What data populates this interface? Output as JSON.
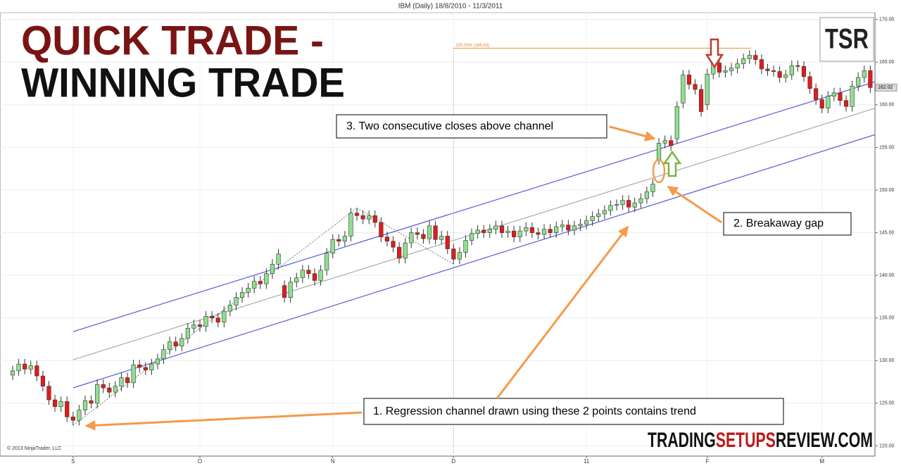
{
  "chart_data": {
    "type": "candlestick",
    "title": "IBM (Daily)  18/8/2010 - 11/3/2011",
    "categories": [
      null,
      null,
      null,
      null,
      null,
      null,
      null,
      null,
      null,
      null,
      "S",
      null,
      null,
      null,
      null,
      null,
      null,
      null,
      null,
      null,
      null,
      null,
      null,
      null,
      null,
      null,
      null,
      null,
      null,
      null,
      null,
      "O",
      null,
      null,
      null,
      null,
      null,
      null,
      null,
      null,
      null,
      null,
      null,
      null,
      null,
      null,
      null,
      null,
      null,
      null,
      null,
      null,
      null,
      "N",
      null,
      null,
      null,
      null,
      null,
      null,
      null,
      null,
      null,
      null,
      null,
      null,
      null,
      null,
      null,
      null,
      null,
      null,
      null,
      "D",
      null,
      null,
      null,
      null,
      null,
      null,
      null,
      null,
      null,
      null,
      null,
      null,
      null,
      null,
      null,
      null,
      null,
      null,
      null,
      null,
      null,
      "11",
      null,
      null,
      null,
      null,
      null,
      null,
      null,
      null,
      null,
      null,
      null,
      null,
      null,
      null,
      null,
      null,
      null,
      null,
      null,
      "F",
      null,
      null,
      null,
      null,
      null,
      null,
      null,
      null,
      null,
      null,
      null,
      null,
      null,
      null,
      null,
      null,
      null,
      null,
      "M",
      null,
      null,
      null,
      null,
      null,
      null,
      null,
      null
    ],
    "open": [
      128.3,
      128.8,
      129.6,
      129.0,
      129.4,
      128.2,
      127.0,
      125.4,
      124.6,
      125.2,
      123.4,
      123.0,
      124.2,
      125.3,
      125.0,
      127.2,
      126.8,
      126.3,
      127.0,
      128.0,
      127.4,
      129.5,
      129.2,
      128.9,
      129.6,
      130.2,
      131.3,
      132.2,
      131.7,
      132.6,
      133.8,
      134.2,
      134.0,
      135.2,
      135.0,
      134.5,
      135.8,
      136.5,
      137.4,
      138.0,
      138.5,
      139.3,
      139.0,
      140.2,
      141.3,
      138.8,
      137.4,
      139.2,
      139.7,
      140.6,
      140.2,
      139.4,
      140.6,
      142.6,
      144.2,
      144.0,
      144.6,
      147.3,
      147.0,
      146.6,
      147.0,
      146.2,
      144.5,
      144.0,
      143.3,
      142.0,
      143.8,
      145.0,
      144.8,
      144.3,
      145.8,
      144.2,
      144.6,
      143.1,
      141.9,
      142.7,
      144.1,
      144.9,
      145.3,
      145.0,
      145.4,
      145.8,
      145.0,
      145.2,
      144.5,
      145.2,
      145.6,
      145.0,
      144.8,
      145.4,
      145.0,
      145.7,
      145.9,
      145.3,
      145.8,
      146.0,
      146.4,
      146.9,
      147.2,
      147.6,
      148.2,
      148.3,
      148.8,
      148.0,
      148.5,
      149.0,
      149.8,
      153.6,
      155.5,
      155.8,
      156.0,
      160.2,
      163.5,
      162.4,
      161.8,
      160.0,
      163.6,
      164.9,
      163.8,
      164.0,
      164.3,
      164.8,
      165.4,
      165.8,
      165.3,
      164.2,
      164.0,
      163.9,
      163.2,
      163.5,
      164.6,
      164.5,
      163.3,
      161.9,
      160.6,
      159.6,
      161.0,
      161.4,
      160.5,
      159.8,
      162.2,
      163.2,
      164.0
    ],
    "high": [
      129.4,
      130.2,
      130.2,
      130.0,
      130.0,
      128.8,
      127.6,
      126.0,
      125.8,
      125.8,
      124.0,
      124.8,
      125.9,
      125.9,
      127.8,
      127.8,
      127.4,
      127.6,
      128.6,
      128.6,
      130.1,
      130.1,
      129.8,
      130.2,
      130.8,
      131.9,
      132.8,
      132.8,
      133.2,
      134.4,
      134.8,
      134.8,
      135.8,
      135.8,
      135.6,
      136.4,
      137.1,
      138.0,
      138.6,
      139.1,
      139.9,
      139.9,
      140.8,
      141.9,
      143.1,
      139.4,
      139.8,
      140.3,
      141.2,
      141.2,
      140.8,
      141.2,
      143.2,
      144.8,
      144.8,
      145.2,
      147.9,
      147.9,
      147.6,
      147.6,
      147.6,
      146.8,
      145.1,
      144.6,
      143.9,
      144.4,
      145.6,
      145.6,
      145.4,
      146.4,
      146.4,
      145.2,
      145.2,
      143.7,
      143.3,
      144.7,
      145.5,
      145.9,
      145.9,
      146.0,
      146.4,
      146.4,
      145.8,
      145.8,
      145.8,
      146.2,
      146.2,
      145.6,
      146.0,
      146.0,
      146.3,
      146.5,
      146.5,
      146.4,
      146.6,
      147.0,
      147.5,
      147.8,
      148.2,
      148.8,
      148.9,
      149.4,
      149.4,
      149.1,
      149.6,
      150.4,
      151.3,
      156.1,
      156.4,
      156.4,
      160.4,
      164.1,
      164.1,
      163.0,
      162.4,
      164.2,
      165.5,
      165.5,
      164.6,
      164.9,
      165.4,
      166.0,
      166.4,
      166.4,
      165.9,
      164.8,
      164.6,
      164.5,
      164.1,
      165.2,
      165.2,
      165.1,
      163.9,
      162.5,
      161.2,
      161.6,
      162.0,
      162.0,
      161.1,
      162.8,
      163.8,
      164.6,
      164.6
    ],
    "low": [
      127.7,
      128.2,
      128.4,
      128.4,
      127.6,
      126.4,
      124.8,
      124.0,
      124.0,
      122.8,
      122.4,
      122.4,
      123.6,
      124.4,
      124.4,
      126.2,
      125.7,
      125.7,
      126.4,
      126.8,
      126.8,
      128.6,
      128.3,
      128.3,
      129.0,
      129.6,
      130.7,
      131.1,
      131.1,
      132.0,
      133.2,
      133.4,
      133.4,
      134.4,
      133.9,
      133.9,
      135.2,
      135.9,
      136.8,
      137.4,
      137.9,
      138.4,
      138.4,
      139.6,
      140.7,
      136.8,
      136.8,
      138.6,
      139.1,
      139.6,
      138.8,
      138.8,
      140.0,
      142.0,
      143.4,
      143.4,
      144.0,
      146.4,
      146.0,
      146.0,
      145.6,
      143.9,
      143.4,
      142.7,
      141.4,
      141.4,
      143.2,
      144.2,
      143.7,
      143.7,
      143.6,
      143.6,
      142.5,
      141.3,
      141.3,
      142.1,
      143.5,
      144.3,
      144.4,
      144.4,
      144.8,
      144.4,
      144.4,
      143.9,
      143.9,
      144.6,
      144.4,
      144.2,
      144.2,
      144.4,
      144.4,
      145.1,
      144.7,
      144.7,
      145.2,
      145.4,
      145.8,
      146.3,
      146.6,
      147.0,
      147.6,
      147.7,
      147.4,
      147.4,
      147.9,
      148.4,
      149.2,
      153.0,
      154.9,
      154.6,
      155.4,
      159.6,
      161.8,
      161.2,
      158.6,
      159.4,
      163.0,
      163.2,
      163.2,
      163.4,
      163.7,
      164.2,
      164.8,
      164.7,
      163.6,
      163.4,
      163.3,
      162.6,
      162.6,
      162.9,
      163.9,
      162.7,
      161.3,
      160.0,
      159.0,
      159.0,
      160.4,
      159.9,
      159.2,
      159.2,
      161.6,
      162.6,
      161.4
    ],
    "close": [
      128.8,
      129.6,
      129.0,
      129.4,
      128.2,
      127.0,
      125.4,
      124.6,
      125.2,
      123.4,
      123.0,
      124.2,
      125.3,
      125.0,
      127.2,
      126.8,
      126.3,
      127.0,
      128.0,
      127.4,
      129.5,
      129.2,
      128.9,
      129.6,
      130.2,
      131.3,
      132.2,
      131.7,
      132.6,
      133.8,
      134.2,
      134.0,
      135.2,
      135.0,
      134.5,
      135.8,
      136.5,
      137.4,
      138.0,
      138.5,
      139.3,
      139.0,
      140.2,
      141.3,
      142.5,
      137.4,
      139.2,
      139.7,
      140.6,
      140.2,
      139.4,
      140.6,
      142.6,
      144.2,
      144.0,
      144.6,
      147.3,
      147.0,
      146.6,
      147.0,
      146.2,
      144.5,
      144.0,
      143.3,
      142.0,
      143.8,
      145.0,
      144.8,
      144.3,
      145.8,
      144.2,
      144.6,
      143.1,
      141.9,
      142.7,
      144.1,
      144.9,
      145.3,
      145.0,
      145.4,
      145.8,
      145.0,
      145.2,
      144.5,
      145.2,
      145.6,
      145.0,
      144.8,
      145.4,
      145.0,
      145.7,
      145.9,
      145.3,
      145.8,
      146.0,
      146.4,
      146.9,
      147.2,
      147.6,
      148.2,
      148.3,
      148.8,
      148.0,
      148.5,
      149.0,
      149.8,
      150.7,
      155.5,
      155.8,
      155.2,
      159.8,
      163.5,
      162.4,
      161.8,
      159.2,
      163.6,
      164.9,
      163.8,
      164.0,
      164.3,
      164.8,
      165.4,
      165.8,
      165.3,
      164.2,
      164.0,
      163.9,
      163.2,
      163.5,
      164.6,
      164.5,
      163.3,
      161.9,
      160.6,
      159.6,
      161.0,
      161.4,
      160.5,
      159.8,
      162.2,
      163.2,
      164.0,
      162.02
    ],
    "up_color": "#8ee08e",
    "down_color": "#e31b1b",
    "ylim": [
      118.8,
      170.8
    ],
    "yticks": [
      {
        "value": 120,
        "label": "120.00"
      },
      {
        "value": 125,
        "label": "125.00"
      },
      {
        "value": 130,
        "label": "130.00"
      },
      {
        "value": 135,
        "label": "135.00"
      },
      {
        "value": 140,
        "label": "140.00"
      },
      {
        "value": 145,
        "label": "145.00"
      },
      {
        "value": 150,
        "label": "150.00"
      },
      {
        "value": 155,
        "label": "155.00"
      },
      {
        "value": 160,
        "label": "160.00"
      },
      {
        "value": 165,
        "label": "165.00"
      },
      {
        "value": 170,
        "label": "170.00"
      }
    ],
    "grid": true,
    "last_price": {
      "value": 162.02,
      "label": "162.02"
    },
    "regression_channel": {
      "x": [
        10,
        142.8
      ],
      "upper": [
        133.4,
        162.7
      ],
      "middle": [
        130.1,
        159.6
      ],
      "lower": [
        126.8,
        156.5
      ]
    },
    "zigzag": {
      "x": [
        10,
        57,
        73
      ],
      "y": [
        122.4,
        147.9,
        141.3
      ]
    },
    "level": {
      "label": "100.00% (166.63)",
      "value": 166.63,
      "x": [
        73,
        122.3
      ]
    },
    "headline": [
      "QUICK TRADE -",
      "WINNING TRADE"
    ],
    "logo": "TSR",
    "site": [
      "TRADING",
      "SETUPS",
      "REVIEW.COM"
    ],
    "callouts": [
      "3. Two consecutive closes above channel",
      "2. Breakaway gap",
      "1. Regression channel drawn using these 2 points contains trend"
    ],
    "copyright": "© 2013 NinjaTrader, LLC"
  }
}
